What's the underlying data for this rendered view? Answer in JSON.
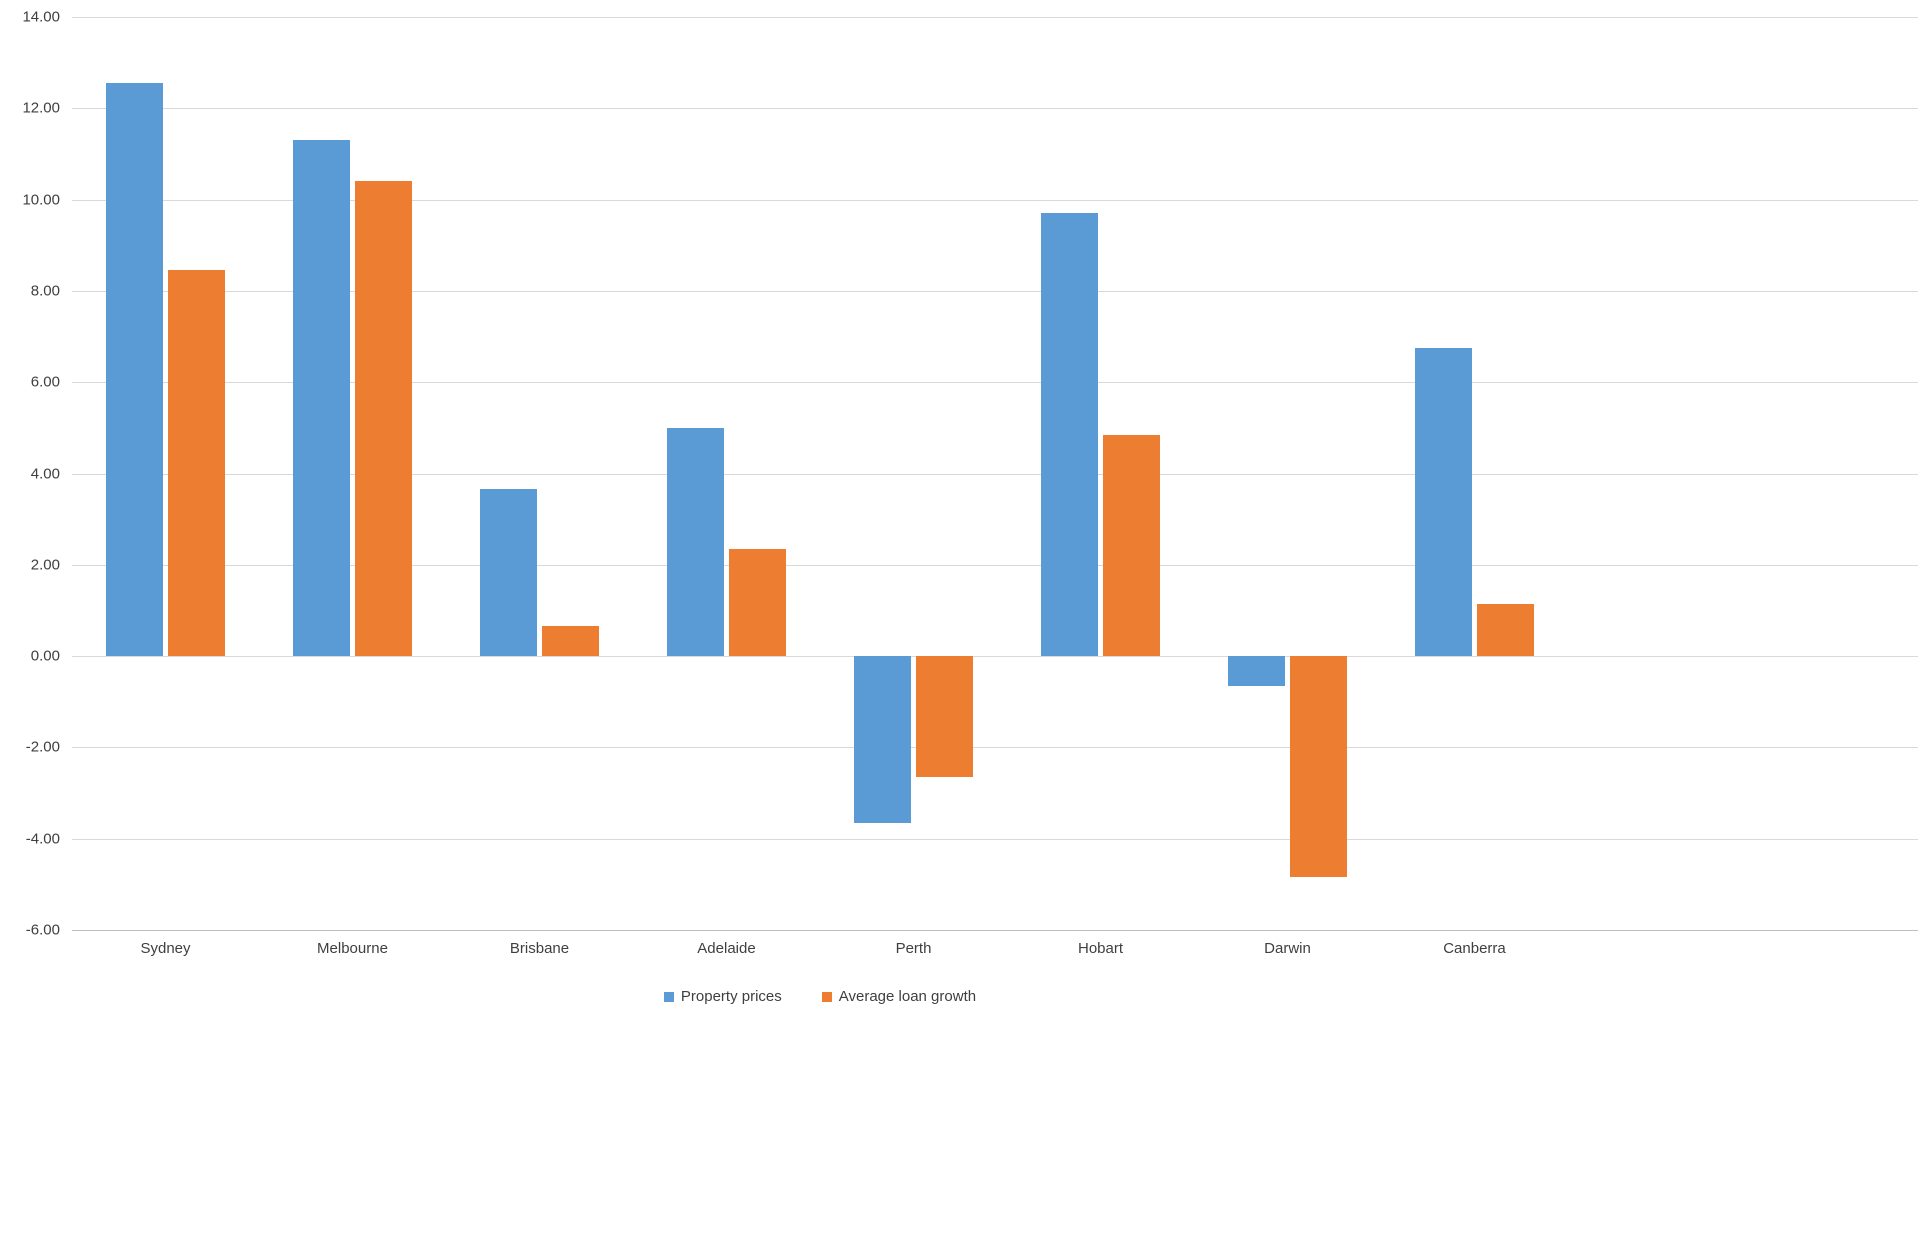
{
  "chart_data": {
    "type": "bar",
    "title": "",
    "xlabel": "",
    "ylabel": "",
    "categories": [
      "Sydney",
      "Melbourne",
      "Brisbane",
      "Adelaide",
      "Perth",
      "Hobart",
      "Darwin",
      "Canberra"
    ],
    "series": [
      {
        "name": "Property prices",
        "color": "#5B9BD5",
        "values": [
          12.55,
          11.3,
          3.65,
          5.0,
          -3.65,
          9.7,
          -0.65,
          6.75
        ]
      },
      {
        "name": "Average loan growth",
        "color": "#ED7D31",
        "values": [
          8.45,
          10.4,
          0.65,
          2.35,
          -2.65,
          4.85,
          -4.85,
          1.15
        ]
      }
    ],
    "ylim": [
      -6,
      14
    ],
    "ytick_step": 2,
    "ytick_decimals": 2,
    "grid": "horizontal",
    "legend_position": "bottom",
    "gridline_color": "#d9d9d9",
    "text_color": "#3f3f3f",
    "background_color": "#ffffff"
  }
}
